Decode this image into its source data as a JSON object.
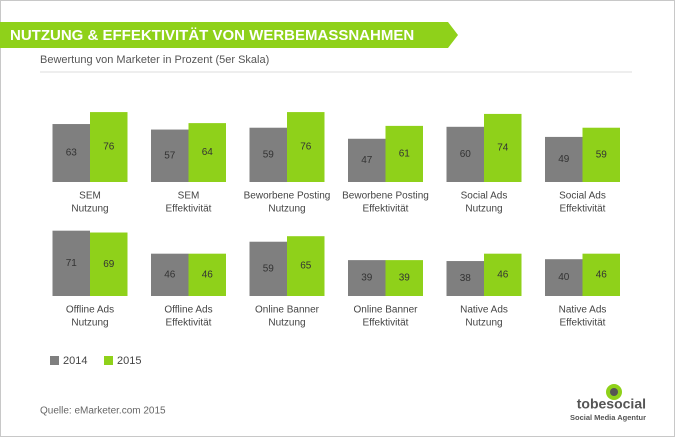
{
  "chart_data": {
    "type": "bar",
    "title": "NUTZUNG & EFFEKTIVITÄT VON WERBEMASSNAHMEN",
    "subtitle": "Bewertung von Marketer in Prozent (5er Skala)",
    "categories": [
      [
        "SEM",
        "Nutzung"
      ],
      [
        "SEM",
        "Effektivität"
      ],
      [
        "Beworbene Posting",
        "Nutzung"
      ],
      [
        "Beworbene Posting",
        "Effektivität"
      ],
      [
        "Social Ads",
        "Nutzung"
      ],
      [
        "Social Ads",
        "Effektivität"
      ],
      [
        "Offline Ads",
        "Nutzung"
      ],
      [
        "Offline Ads",
        "Effektivität"
      ],
      [
        "Online Banner",
        "Nutzung"
      ],
      [
        "Online Banner",
        "Effektivität"
      ],
      [
        "Native Ads",
        "Nutzung"
      ],
      [
        "Native Ads",
        "Effektivität"
      ]
    ],
    "series": [
      {
        "name": "2014",
        "color": "#7f7f7f",
        "values": [
          63,
          57,
          59,
          47,
          60,
          49,
          71,
          46,
          59,
          39,
          38,
          40
        ]
      },
      {
        "name": "2015",
        "color": "#8fd11a",
        "values": [
          76,
          64,
          76,
          61,
          74,
          59,
          69,
          46,
          65,
          39,
          46,
          46
        ]
      }
    ],
    "source": "Quelle: eMarketer.com 2015"
  },
  "logo": {
    "name": "tobesocial",
    "tagline": "Social Media Agentur"
  }
}
